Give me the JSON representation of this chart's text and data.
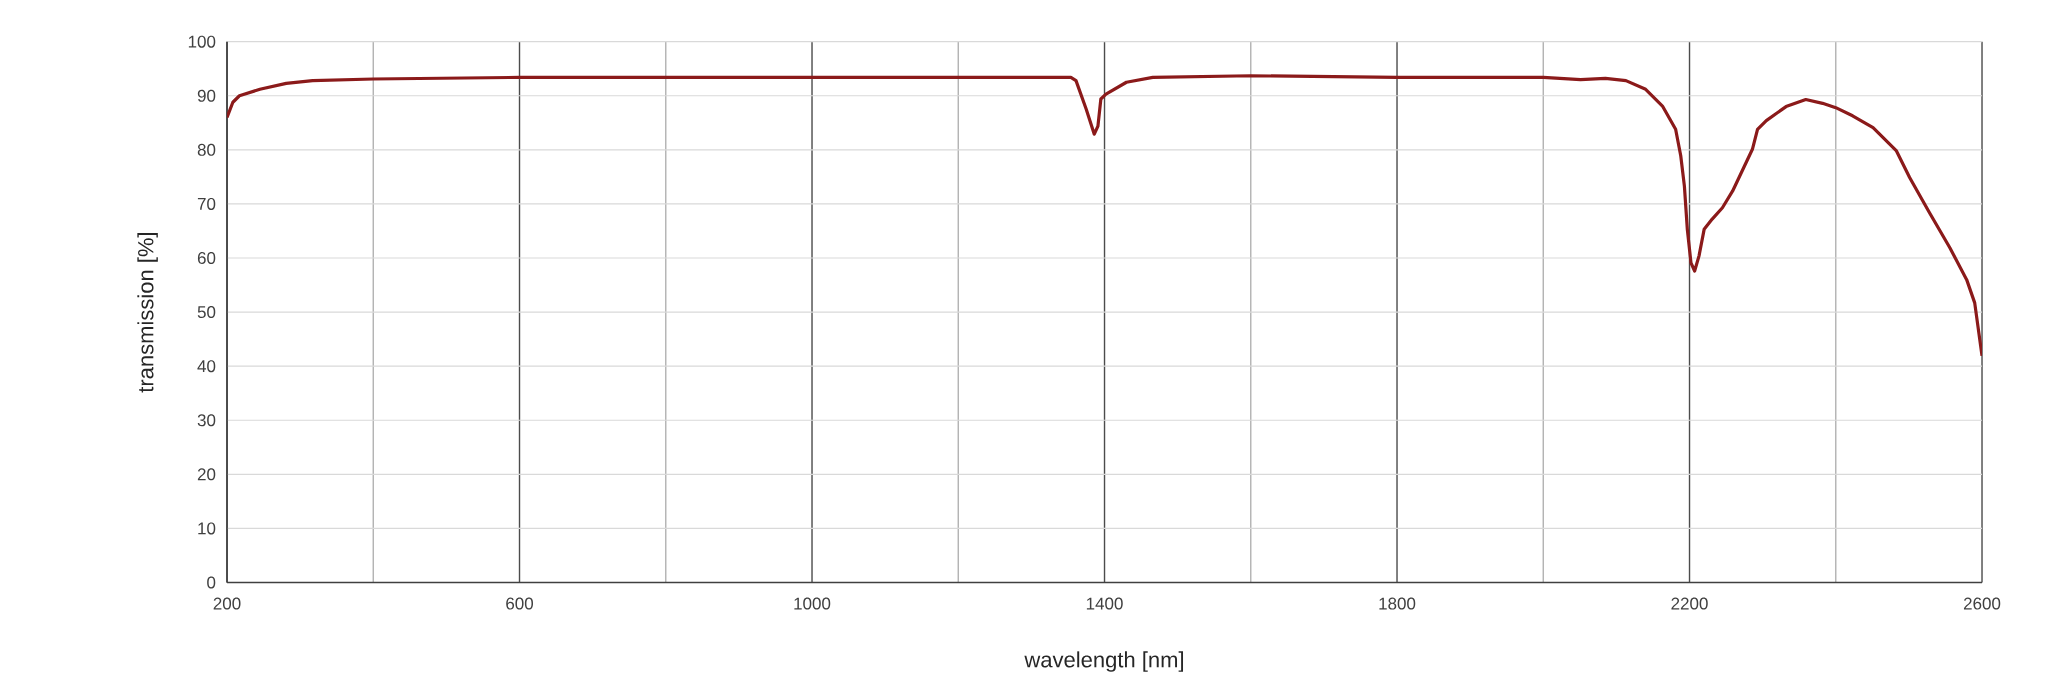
{
  "chart_data": {
    "type": "line",
    "xlabel": "wavelength [nm]",
    "ylabel": "transmission [%]",
    "xlim": [
      200,
      2600
    ],
    "ylim": [
      0,
      100
    ],
    "xticks": [
      200,
      {
        "value": 400,
        "label": null
      },
      600,
      {
        "value": 800,
        "label": null
      },
      1000,
      {
        "value": 1200,
        "label": null
      },
      1400,
      {
        "value": 1600,
        "label": null
      },
      1800,
      {
        "value": 2000,
        "label": null
      },
      2200,
      {
        "value": 2400,
        "label": null
      },
      2600
    ],
    "yticks": [
      0,
      10,
      20,
      30,
      40,
      50,
      60,
      70,
      80,
      90,
      100
    ],
    "grid": true,
    "marker": "none",
    "line_style": "solid",
    "series": [
      {
        "color": "#8b1a1a",
        "x": [
          200,
          208,
          217,
          245,
          281,
          317,
          400,
          600,
          800,
          1000,
          1200,
          1256,
          1354,
          1361,
          1375,
          1386,
          1391,
          1395,
          1402,
          1430,
          1466,
          1600,
          1800,
          1939,
          2000,
          2051,
          2085,
          2113,
          2140,
          2163,
          2181,
          2188,
          2193,
          2197,
          2202,
          2207,
          2213,
          2220,
          2231,
          2245,
          2259,
          2286,
          2293,
          2305,
          2332,
          2359,
          2382,
          2400,
          2423,
          2451,
          2483,
          2501,
          2528,
          2556,
          2579,
          2590,
          2600
        ],
        "values": [
          86.0,
          88.8,
          90.0,
          91.2,
          92.3,
          92.8,
          93.1,
          93.4,
          93.4,
          93.4,
          93.4,
          93.4,
          93.4,
          92.8,
          87.5,
          82.9,
          84.4,
          89.4,
          90.3,
          92.5,
          93.4,
          93.7,
          93.4,
          93.4,
          93.4,
          93.0,
          93.2,
          92.8,
          91.2,
          88.1,
          83.8,
          78.9,
          73.3,
          65.3,
          59.1,
          57.6,
          60.4,
          65.3,
          67.2,
          69.3,
          72.4,
          80.1,
          83.8,
          85.4,
          88.0,
          89.3,
          88.6,
          87.8,
          86.3,
          84.1,
          79.8,
          74.9,
          68.4,
          61.9,
          56.0,
          51.7,
          41.9
        ]
      }
    ]
  }
}
